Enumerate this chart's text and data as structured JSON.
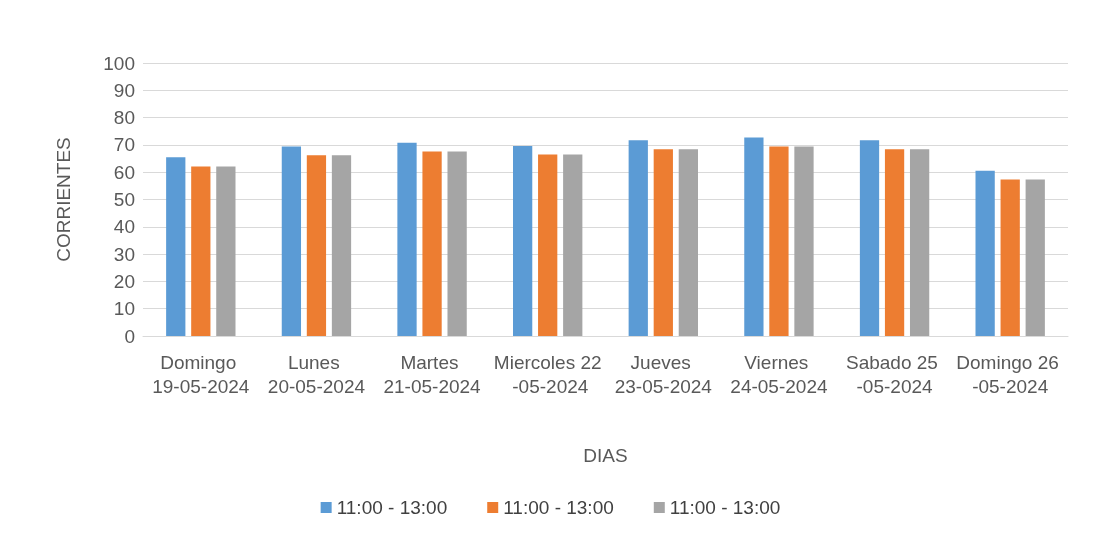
{
  "chart_data": {
    "type": "bar",
    "xlabel": "DIAS",
    "ylabel": "CORRIENTES",
    "categories": [
      "Domingo 19-05-2024",
      "Lunes 20-05-2024",
      "Martes 21-05-2024",
      "Miercoles 22 -05-2024",
      "Jueves 23-05-2024",
      "Viernes 24-05-2024",
      "Sabado 25 -05-2024",
      "Domingo 26 -05-2024"
    ],
    "series": [
      {
        "name": "11:00 - 13:00",
        "color": "#5b9bd5",
        "values": [
          65.5,
          69.4,
          70.8,
          69.6,
          71.7,
          72.7,
          71.7,
          60.5
        ]
      },
      {
        "name": "11:00 - 13:00",
        "color": "#ed7d31",
        "values": [
          62.1,
          66.2,
          67.6,
          66.5,
          68.4,
          69.4,
          68.4,
          57.3
        ]
      },
      {
        "name": "11:00 - 13:00",
        "color": "#a5a5a5",
        "values": [
          62.1,
          66.2,
          67.6,
          66.5,
          68.4,
          69.4,
          68.4,
          57.3
        ]
      }
    ],
    "ylim": [
      0,
      100
    ],
    "yticks": [
      0,
      10,
      20,
      30,
      40,
      50,
      60,
      70,
      80,
      90,
      100
    ],
    "grid": "y",
    "legend": "bottom"
  }
}
